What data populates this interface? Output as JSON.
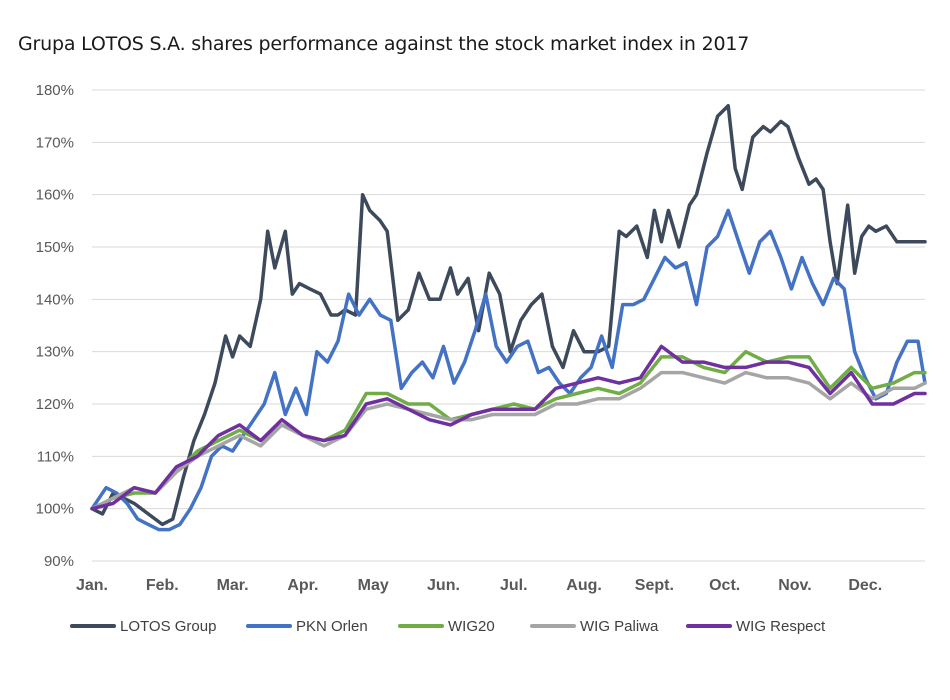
{
  "chart_data": {
    "type": "line",
    "title": "Grupa LOTOS S.A. shares performance against the stock market index in 2017",
    "ylim": [
      90,
      180
    ],
    "yticks": [
      90,
      100,
      110,
      120,
      130,
      140,
      150,
      160,
      170,
      180
    ],
    "ytick_labels": [
      "90%",
      "100%",
      "110%",
      "120%",
      "130%",
      "140%",
      "150%",
      "160%",
      "170%",
      "180%"
    ],
    "xlim": [
      0,
      11.85
    ],
    "month_labels": [
      "Jan.",
      "Feb.",
      "Mar.",
      "Apr.",
      "May",
      "Jun.",
      "Jul.",
      "Aug.",
      "Sept.",
      "Oct.",
      "Nov.",
      "Dec."
    ],
    "grid": "horizontal",
    "legend_position": "bottom",
    "series": [
      {
        "name": "LOTOS Group",
        "color": "#3d4a5c",
        "x": [
          0,
          0.15,
          0.3,
          0.45,
          0.6,
          0.8,
          1.0,
          1.15,
          1.3,
          1.45,
          1.6,
          1.75,
          1.9,
          2.0,
          2.1,
          2.25,
          2.4,
          2.5,
          2.6,
          2.75,
          2.85,
          2.95,
          3.1,
          3.25,
          3.4,
          3.5,
          3.6,
          3.75,
          3.85,
          3.95,
          4.1,
          4.2,
          4.35,
          4.5,
          4.65,
          4.8,
          4.95,
          5.1,
          5.2,
          5.35,
          5.5,
          5.65,
          5.8,
          5.95,
          6.1,
          6.25,
          6.4,
          6.55,
          6.7,
          6.85,
          7.0,
          7.1,
          7.2,
          7.35,
          7.5,
          7.6,
          7.75,
          7.9,
          8.0,
          8.1,
          8.2,
          8.35,
          8.5,
          8.6,
          8.75,
          8.9,
          9.05,
          9.15,
          9.25,
          9.4,
          9.55,
          9.65,
          9.8,
          9.9,
          10.05,
          10.2,
          10.3,
          10.4,
          10.5,
          10.6,
          10.75,
          10.85,
          10.95,
          11.05,
          11.15,
          11.3,
          11.45,
          11.6,
          11.75,
          11.85
        ],
        "values": [
          100,
          99,
          103,
          102,
          101,
          99,
          97,
          98,
          106,
          113,
          118,
          124,
          133,
          129,
          133,
          131,
          140,
          153,
          146,
          153,
          141,
          143,
          142,
          141,
          137,
          137,
          138,
          137,
          160,
          157,
          155,
          153,
          136,
          138,
          145,
          140,
          140,
          146,
          141,
          144,
          134,
          145,
          141,
          130,
          136,
          139,
          141,
          131,
          127,
          134,
          130,
          130,
          130,
          131,
          153,
          152,
          154,
          148,
          157,
          151,
          157,
          150,
          158,
          160,
          168,
          175,
          177,
          165,
          161,
          171,
          173,
          172,
          174,
          173,
          167,
          162,
          163,
          161,
          151,
          143,
          158,
          145,
          152,
          154,
          153,
          154,
          151,
          151,
          151,
          151
        ]
      },
      {
        "name": "PKN Orlen",
        "color": "#4472c4",
        "x": [
          0,
          0.2,
          0.35,
          0.5,
          0.65,
          0.8,
          0.95,
          1.1,
          1.25,
          1.4,
          1.55,
          1.7,
          1.85,
          2.0,
          2.15,
          2.3,
          2.45,
          2.6,
          2.75,
          2.9,
          3.05,
          3.2,
          3.35,
          3.5,
          3.65,
          3.8,
          3.95,
          4.1,
          4.25,
          4.4,
          4.55,
          4.7,
          4.85,
          5.0,
          5.15,
          5.3,
          5.45,
          5.6,
          5.75,
          5.9,
          6.05,
          6.2,
          6.35,
          6.5,
          6.65,
          6.8,
          6.95,
          7.1,
          7.25,
          7.4,
          7.55,
          7.7,
          7.85,
          8.0,
          8.15,
          8.3,
          8.45,
          8.6,
          8.75,
          8.9,
          9.05,
          9.2,
          9.35,
          9.5,
          9.65,
          9.8,
          9.95,
          10.1,
          10.25,
          10.4,
          10.55,
          10.7,
          10.85,
          11.0,
          11.15,
          11.3,
          11.45,
          11.6,
          11.75,
          11.85
        ],
        "values": [
          100,
          104,
          103,
          101,
          98,
          97,
          96,
          96,
          97,
          100,
          104,
          110,
          112,
          111,
          114,
          117,
          120,
          126,
          118,
          123,
          118,
          130,
          128,
          132,
          141,
          137,
          140,
          137,
          136,
          123,
          126,
          128,
          125,
          131,
          124,
          128,
          134,
          141,
          131,
          128,
          131,
          132,
          126,
          127,
          124,
          122,
          125,
          127,
          133,
          127,
          139,
          139,
          140,
          144,
          148,
          146,
          147,
          139,
          150,
          152,
          157,
          151,
          145,
          151,
          153,
          148,
          142,
          148,
          143,
          139,
          144,
          142,
          130,
          125,
          121,
          122,
          128,
          132,
          132,
          124
        ]
      },
      {
        "name": "WIG20",
        "color": "#70ad47",
        "x": [
          0,
          0.3,
          0.6,
          0.9,
          1.2,
          1.5,
          1.8,
          2.1,
          2.4,
          2.7,
          3.0,
          3.3,
          3.6,
          3.9,
          4.2,
          4.5,
          4.8,
          5.1,
          5.4,
          5.7,
          6.0,
          6.3,
          6.6,
          6.9,
          7.2,
          7.5,
          7.8,
          8.1,
          8.4,
          8.7,
          9.0,
          9.3,
          9.6,
          9.9,
          10.2,
          10.5,
          10.8,
          11.1,
          11.4,
          11.7,
          11.85
        ],
        "values": [
          100,
          102,
          103,
          103,
          107,
          111,
          113,
          115,
          113,
          116,
          114,
          113,
          115,
          122,
          122,
          120,
          120,
          117,
          118,
          119,
          120,
          119,
          121,
          122,
          123,
          122,
          124,
          129,
          129,
          127,
          126,
          130,
          128,
          129,
          129,
          123,
          127,
          123,
          124,
          126,
          126
        ]
      },
      {
        "name": "WIG Paliwa",
        "color": "#a5a5a5",
        "x": [
          0,
          0.3,
          0.6,
          0.9,
          1.2,
          1.5,
          1.8,
          2.1,
          2.4,
          2.7,
          3.0,
          3.3,
          3.6,
          3.9,
          4.2,
          4.5,
          4.8,
          5.1,
          5.4,
          5.7,
          6.0,
          6.3,
          6.6,
          6.9,
          7.2,
          7.5,
          7.8,
          8.1,
          8.4,
          8.7,
          9.0,
          9.3,
          9.6,
          9.9,
          10.2,
          10.5,
          10.8,
          11.1,
          11.4,
          11.7,
          11.85
        ],
        "values": [
          100,
          102,
          104,
          103,
          107,
          110,
          112,
          114,
          112,
          116,
          114,
          112,
          114,
          119,
          120,
          119,
          118,
          117,
          117,
          118,
          118,
          118,
          120,
          120,
          121,
          121,
          123,
          126,
          126,
          125,
          124,
          126,
          125,
          125,
          124,
          121,
          124,
          121,
          123,
          123,
          124
        ]
      },
      {
        "name": "WIG Respect",
        "color": "#7030a0",
        "x": [
          0,
          0.3,
          0.6,
          0.9,
          1.2,
          1.5,
          1.8,
          2.1,
          2.4,
          2.7,
          3.0,
          3.3,
          3.6,
          3.9,
          4.2,
          4.5,
          4.8,
          5.1,
          5.4,
          5.7,
          6.0,
          6.3,
          6.6,
          6.9,
          7.2,
          7.5,
          7.8,
          8.1,
          8.4,
          8.7,
          9.0,
          9.3,
          9.6,
          9.9,
          10.2,
          10.5,
          10.8,
          11.1,
          11.4,
          11.7,
          11.85
        ],
        "values": [
          100,
          101,
          104,
          103,
          108,
          110,
          114,
          116,
          113,
          117,
          114,
          113,
          114,
          120,
          121,
          119,
          117,
          116,
          118,
          119,
          119,
          119,
          123,
          124,
          125,
          124,
          125,
          131,
          128,
          128,
          127,
          127,
          128,
          128,
          127,
          122,
          126,
          120,
          120,
          122,
          122
        ]
      }
    ]
  }
}
